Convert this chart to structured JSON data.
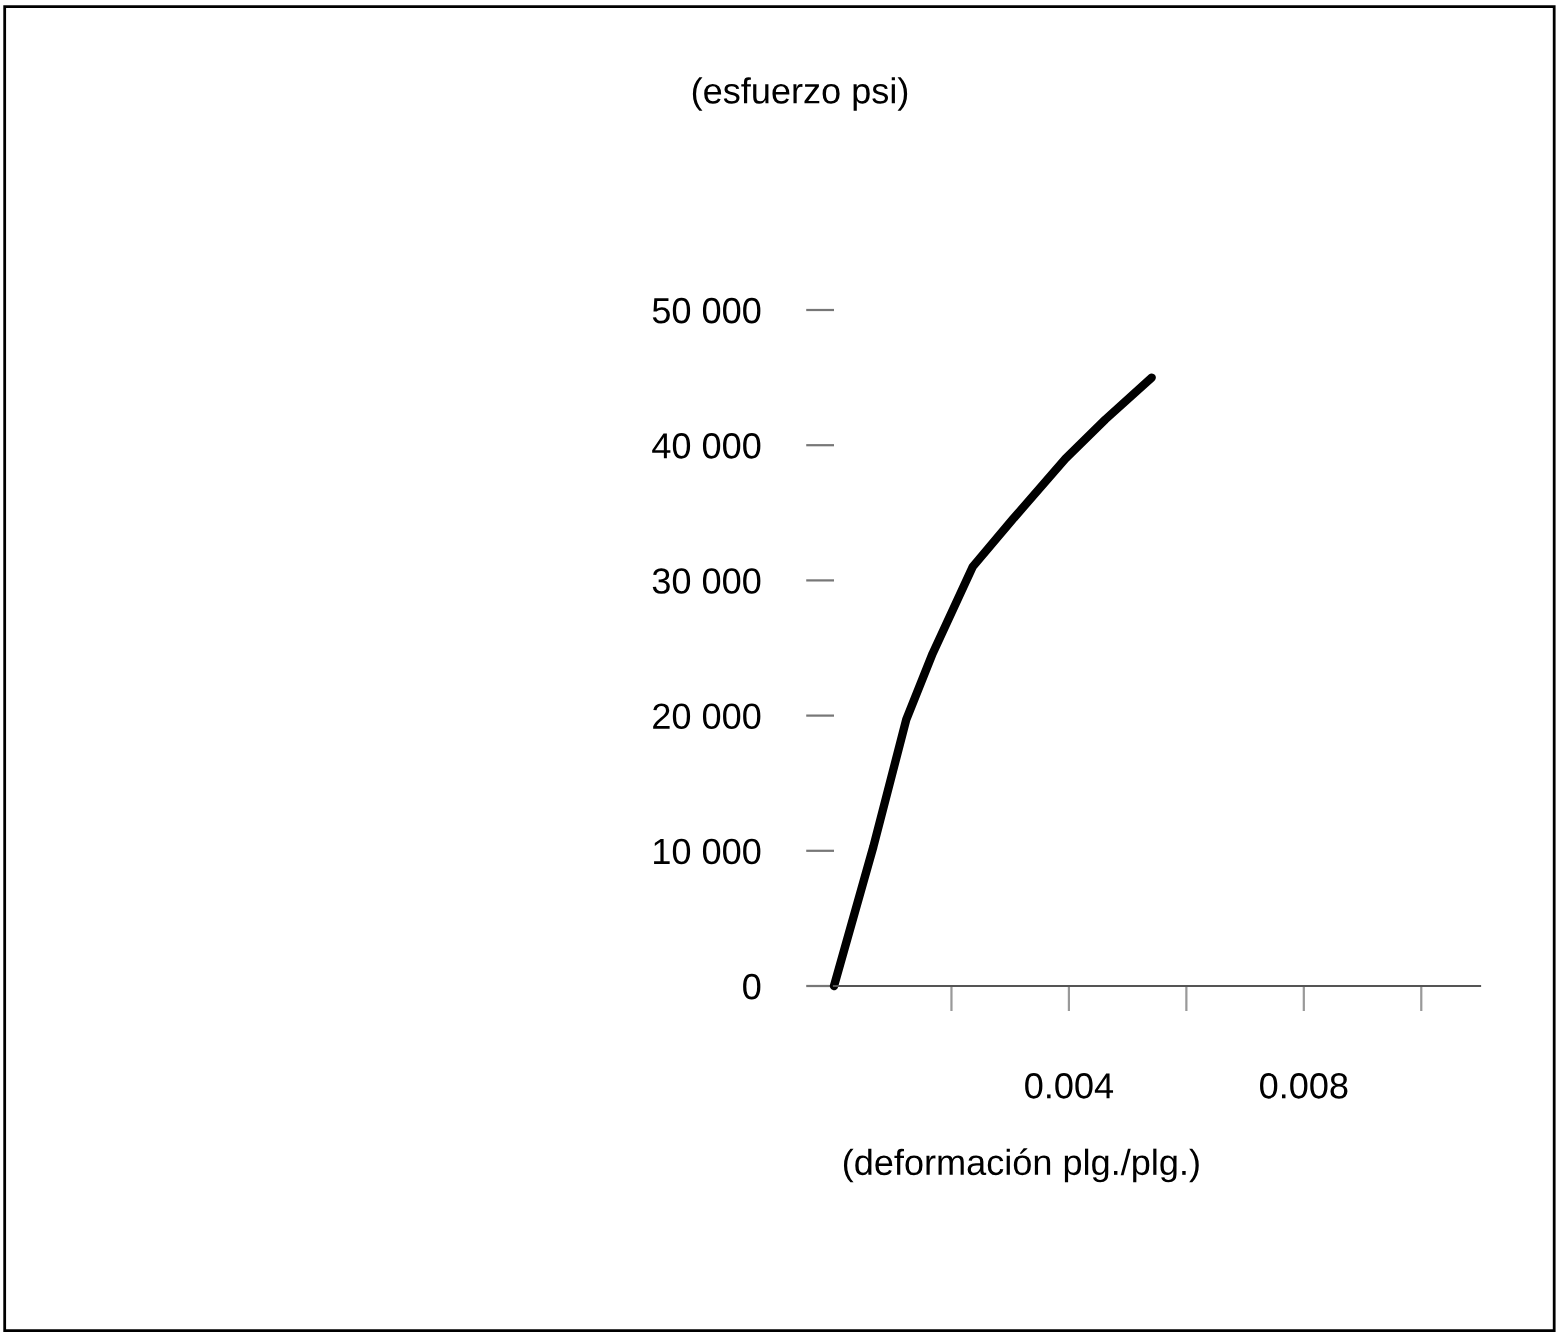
{
  "chart_data": {
    "type": "line",
    "xlabel": "(deformación plg./plg.)",
    "annotations": [
      "(esfuerzo psi)"
    ],
    "x": [
      0,
      0.00067,
      0.00123,
      0.00168,
      0.00236,
      0.00304,
      0.00394,
      0.00462,
      0.00541
    ],
    "series": [
      {
        "color": "#000000",
        "values": [
          0,
          10300,
          19700,
          24600,
          31000,
          34500,
          39000,
          41900,
          45000
        ]
      }
    ],
    "xlim": [
      0,
      0.011
    ],
    "xticks": [
      {
        "value": 0.002,
        "label": null
      },
      0.004,
      {
        "value": 0.006,
        "label": null
      },
      0.008,
      {
        "value": 0.01,
        "label": null
      }
    ],
    "ylim": [
      0,
      50000
    ],
    "yticks": [
      {
        "value": 0,
        "label": "0"
      },
      {
        "value": 10000,
        "label": "10 000"
      },
      {
        "value": 20000,
        "label": "20 000"
      },
      {
        "value": 30000,
        "label": "30 000"
      },
      {
        "value": 40000,
        "label": "40 000"
      },
      {
        "value": 50000,
        "label": "50 000"
      }
    ],
    "grid": false,
    "legend": false,
    "marker": "none",
    "line_style": "solid"
  }
}
